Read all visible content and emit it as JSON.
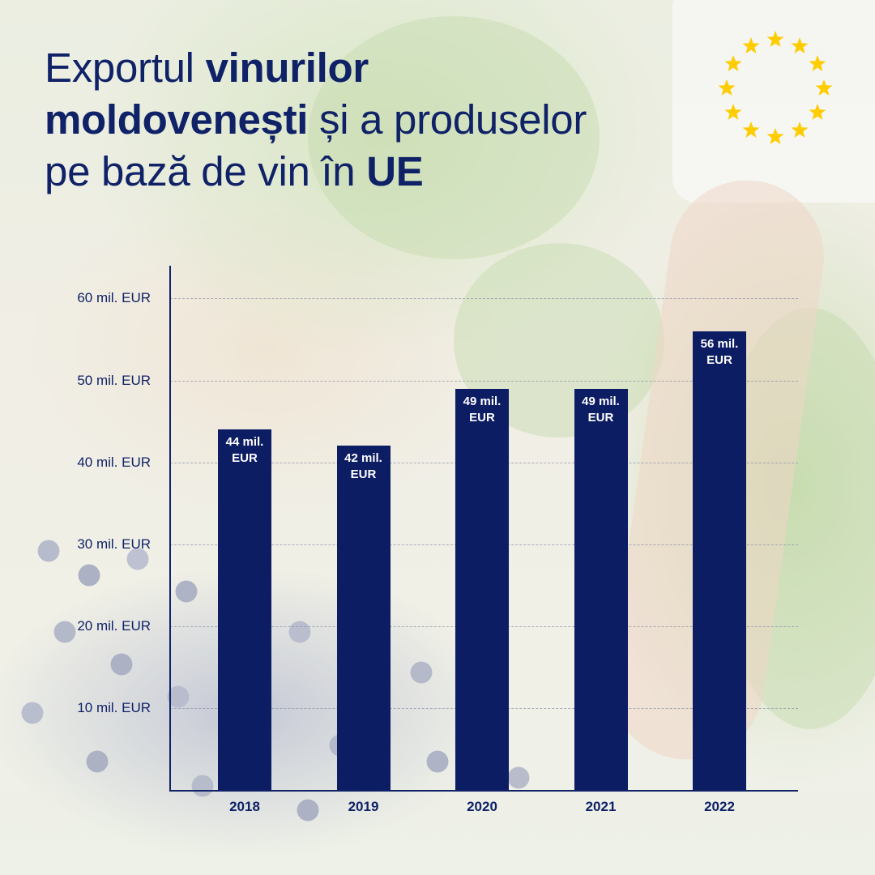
{
  "title": {
    "line1_regular": "Exportul ",
    "line1_bold": "vinurilor",
    "line2_bold": "moldovenești",
    "line2_regular": " și a produselor",
    "line3_regular": "pe bază de vin în ",
    "line3_bold": "UE"
  },
  "emblem": {
    "icon": "eu-flag-stars-icon",
    "star_color": "#ffcc00"
  },
  "colors": {
    "bar": "#0d1d64",
    "text": "#0f2167",
    "bar_label": "#ffffff"
  },
  "chart_data": {
    "type": "bar",
    "title": "Exportul vinurilor moldovenești și a produselor pe bază de vin în UE",
    "categories": [
      "2018",
      "2019",
      "2020",
      "2021",
      "2022"
    ],
    "values": [
      44,
      42,
      49,
      49,
      56
    ],
    "data_labels": [
      "44 mil. EUR",
      "42 mil. EUR",
      "49 mil. EUR",
      "49 mil. EUR",
      "56 mil. EUR"
    ],
    "y_ticks": [
      10,
      20,
      30,
      40,
      50,
      60
    ],
    "y_tick_labels": [
      "10 mil. EUR",
      "20 mil. EUR",
      "30 mil. EUR",
      "40 mil. EUR",
      "50 mil. EUR",
      "60 mil. EUR"
    ],
    "ylim": [
      0,
      64
    ],
    "unit": "mil. EUR",
    "grid": true,
    "legend": "none"
  }
}
